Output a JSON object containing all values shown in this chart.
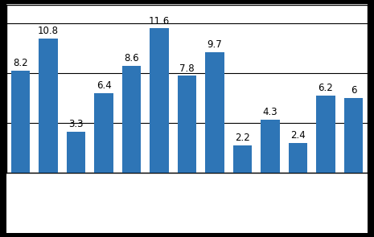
{
  "values": [
    8.2,
    10.8,
    3.3,
    6.4,
    8.6,
    11.6,
    7.8,
    9.7,
    2.2,
    4.3,
    2.4,
    6.2,
    6.0
  ],
  "bar_color": "#2E75B6",
  "ylim": [
    0,
    13.5
  ],
  "background_color": "#FFFFFF",
  "outer_bg": "#000000",
  "label_fontsize": 8.5,
  "label_color": "#000000",
  "bar_width": 0.68,
  "hlines": [
    0,
    4,
    8,
    12
  ],
  "hline_color": "#000000",
  "hline_lw": 0.8,
  "border_color": "#000000",
  "border_lw": 1.0
}
